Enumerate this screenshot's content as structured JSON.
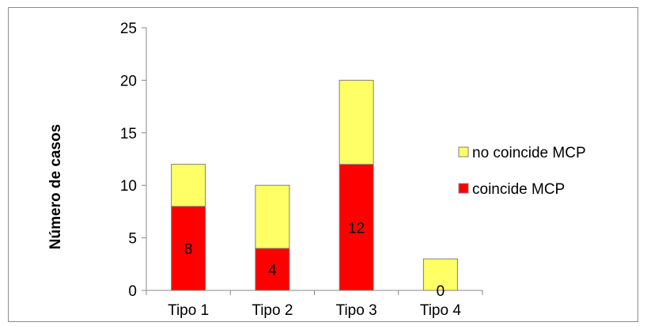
{
  "chart_data": {
    "type": "bar",
    "stacked": true,
    "categories": [
      "Tipo 1",
      "Tipo 2",
      "Tipo 3",
      "Tipo 4"
    ],
    "series": [
      {
        "name": "coincide MCP",
        "values": [
          8,
          4,
          12,
          0
        ],
        "color": "#ff0000",
        "data_labels": [
          "8",
          "4",
          "12",
          "0"
        ]
      },
      {
        "name": "no coincide MCP",
        "values": [
          4,
          6,
          8,
          3
        ],
        "color": "#ffff66"
      }
    ],
    "title": "",
    "xlabel": "",
    "ylabel": "Número de casos",
    "ylim": [
      0,
      25
    ],
    "yticks": [
      0,
      5,
      10,
      15,
      20,
      25
    ],
    "grid": false,
    "legend": {
      "placement": "right",
      "entries": [
        {
          "label": "no coincide MCP",
          "color": "#ffff66"
        },
        {
          "label": "coincide MCP",
          "color": "#ff0000"
        }
      ]
    }
  }
}
